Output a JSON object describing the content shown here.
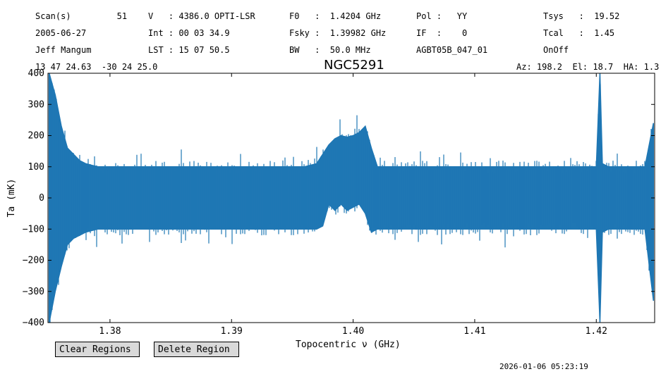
{
  "header": {
    "rows": [
      [
        {
          "col": 0,
          "text": "Scan(s)         51"
        },
        {
          "col": 1,
          "text": "V   : 4386.0 OPTI-LSR"
        },
        {
          "col": 2,
          "text": "F0   :  1.4204 GHz"
        },
        {
          "col": 3,
          "text": "Pol :   YY"
        },
        {
          "col": 4,
          "text": "Tsys   :  19.52"
        }
      ],
      [
        {
          "col": 0,
          "text": "2005-06-27"
        },
        {
          "col": 1,
          "text": "Int : 00 03 34.9"
        },
        {
          "col": 2,
          "text": "Fsky :  1.39982 GHz"
        },
        {
          "col": 3,
          "text": "IF  :    0"
        },
        {
          "col": 4,
          "text": "Tcal   :  1.45"
        }
      ],
      [
        {
          "col": 0,
          "text": "Jeff Mangum"
        },
        {
          "col": 1,
          "text": "LST : 15 07 50.5"
        },
        {
          "col": 2,
          "text": "BW   :  50.0 MHz"
        },
        {
          "col": 3,
          "text": "AGBT05B_047_01"
        },
        {
          "col": 4,
          "text": "OnOff"
        }
      ]
    ],
    "coords": "13 47 24.63  -30 24 25.0",
    "azel": "Az: 198.2  El: 18.7  HA: 1.3"
  },
  "buttons": {
    "clear_regions": "Clear Regions",
    "delete_region": "Delete Region"
  },
  "timestamp": "2026-01-06 05:23:19",
  "colors": {
    "line": "#1f77b4"
  },
  "chart_data": {
    "type": "line",
    "title": "NGC5291",
    "xlabel": "Topocentric ν (GHz)",
    "ylabel": "Ta (mK)",
    "xlim": [
      1.3749,
      1.4248
    ],
    "ylim": [
      -400,
      400
    ],
    "xticks": [
      1.38,
      1.39,
      1.4,
      1.41,
      1.42
    ],
    "xtick_labels": [
      "1.38",
      "1.39",
      "1.40",
      "1.41",
      "1.42"
    ],
    "yticks": [
      -400,
      -300,
      -200,
      -100,
      0,
      100,
      200,
      300,
      400
    ],
    "ytick_labels": [
      "−400",
      "−300",
      "−200",
      "−100",
      "0",
      "100",
      "200",
      "300",
      "400"
    ],
    "grid": false,
    "series": [
      {
        "x": [
          1.375,
          1.3755,
          1.376,
          1.3765,
          1.377,
          1.3775,
          1.378,
          1.3785,
          1.379,
          1.38,
          1.381,
          1.382,
          1.383,
          1.384,
          1.385,
          1.386,
          1.387,
          1.388,
          1.389,
          1.39,
          1.391,
          1.392,
          1.393,
          1.394,
          1.395,
          1.396,
          1.397,
          1.3975,
          1.398,
          1.3985,
          1.399,
          1.3995,
          1.4,
          1.4005,
          1.401,
          1.4015,
          1.402,
          1.403,
          1.404,
          1.405,
          1.406,
          1.407,
          1.408,
          1.409,
          1.41,
          1.411,
          1.412,
          1.413,
          1.414,
          1.415,
          1.416,
          1.417,
          1.418,
          1.419,
          1.42,
          1.4203,
          1.4205,
          1.421,
          1.422,
          1.423,
          1.424,
          1.4247
        ],
        "envelope_upper": [
          400,
          330,
          230,
          160,
          140,
          120,
          110,
          105,
          100,
          100,
          100,
          100,
          100,
          100,
          100,
          100,
          100,
          100,
          100,
          100,
          100,
          100,
          100,
          100,
          100,
          100,
          110,
          140,
          170,
          190,
          200,
          195,
          200,
          210,
          230,
          160,
          100,
          100,
          100,
          100,
          100,
          100,
          100,
          100,
          100,
          100,
          100,
          100,
          100,
          100,
          100,
          100,
          100,
          100,
          100,
          400,
          110,
          100,
          100,
          100,
          100,
          240
        ],
        "envelope_lower": [
          -400,
          -300,
          -220,
          -150,
          -130,
          -120,
          -110,
          -105,
          -100,
          -100,
          -100,
          -100,
          -100,
          -100,
          -100,
          -100,
          -100,
          -100,
          -100,
          -100,
          -100,
          -100,
          -100,
          -100,
          -100,
          -100,
          -100,
          -90,
          -20,
          -40,
          -20,
          -40,
          -30,
          -20,
          -50,
          -110,
          -100,
          -100,
          -100,
          -100,
          -100,
          -100,
          -100,
          -100,
          -100,
          -100,
          -100,
          -100,
          -100,
          -100,
          -100,
          -100,
          -100,
          -100,
          -100,
          -400,
          -110,
          -100,
          -100,
          -100,
          -100,
          -330
        ]
      }
    ]
  }
}
